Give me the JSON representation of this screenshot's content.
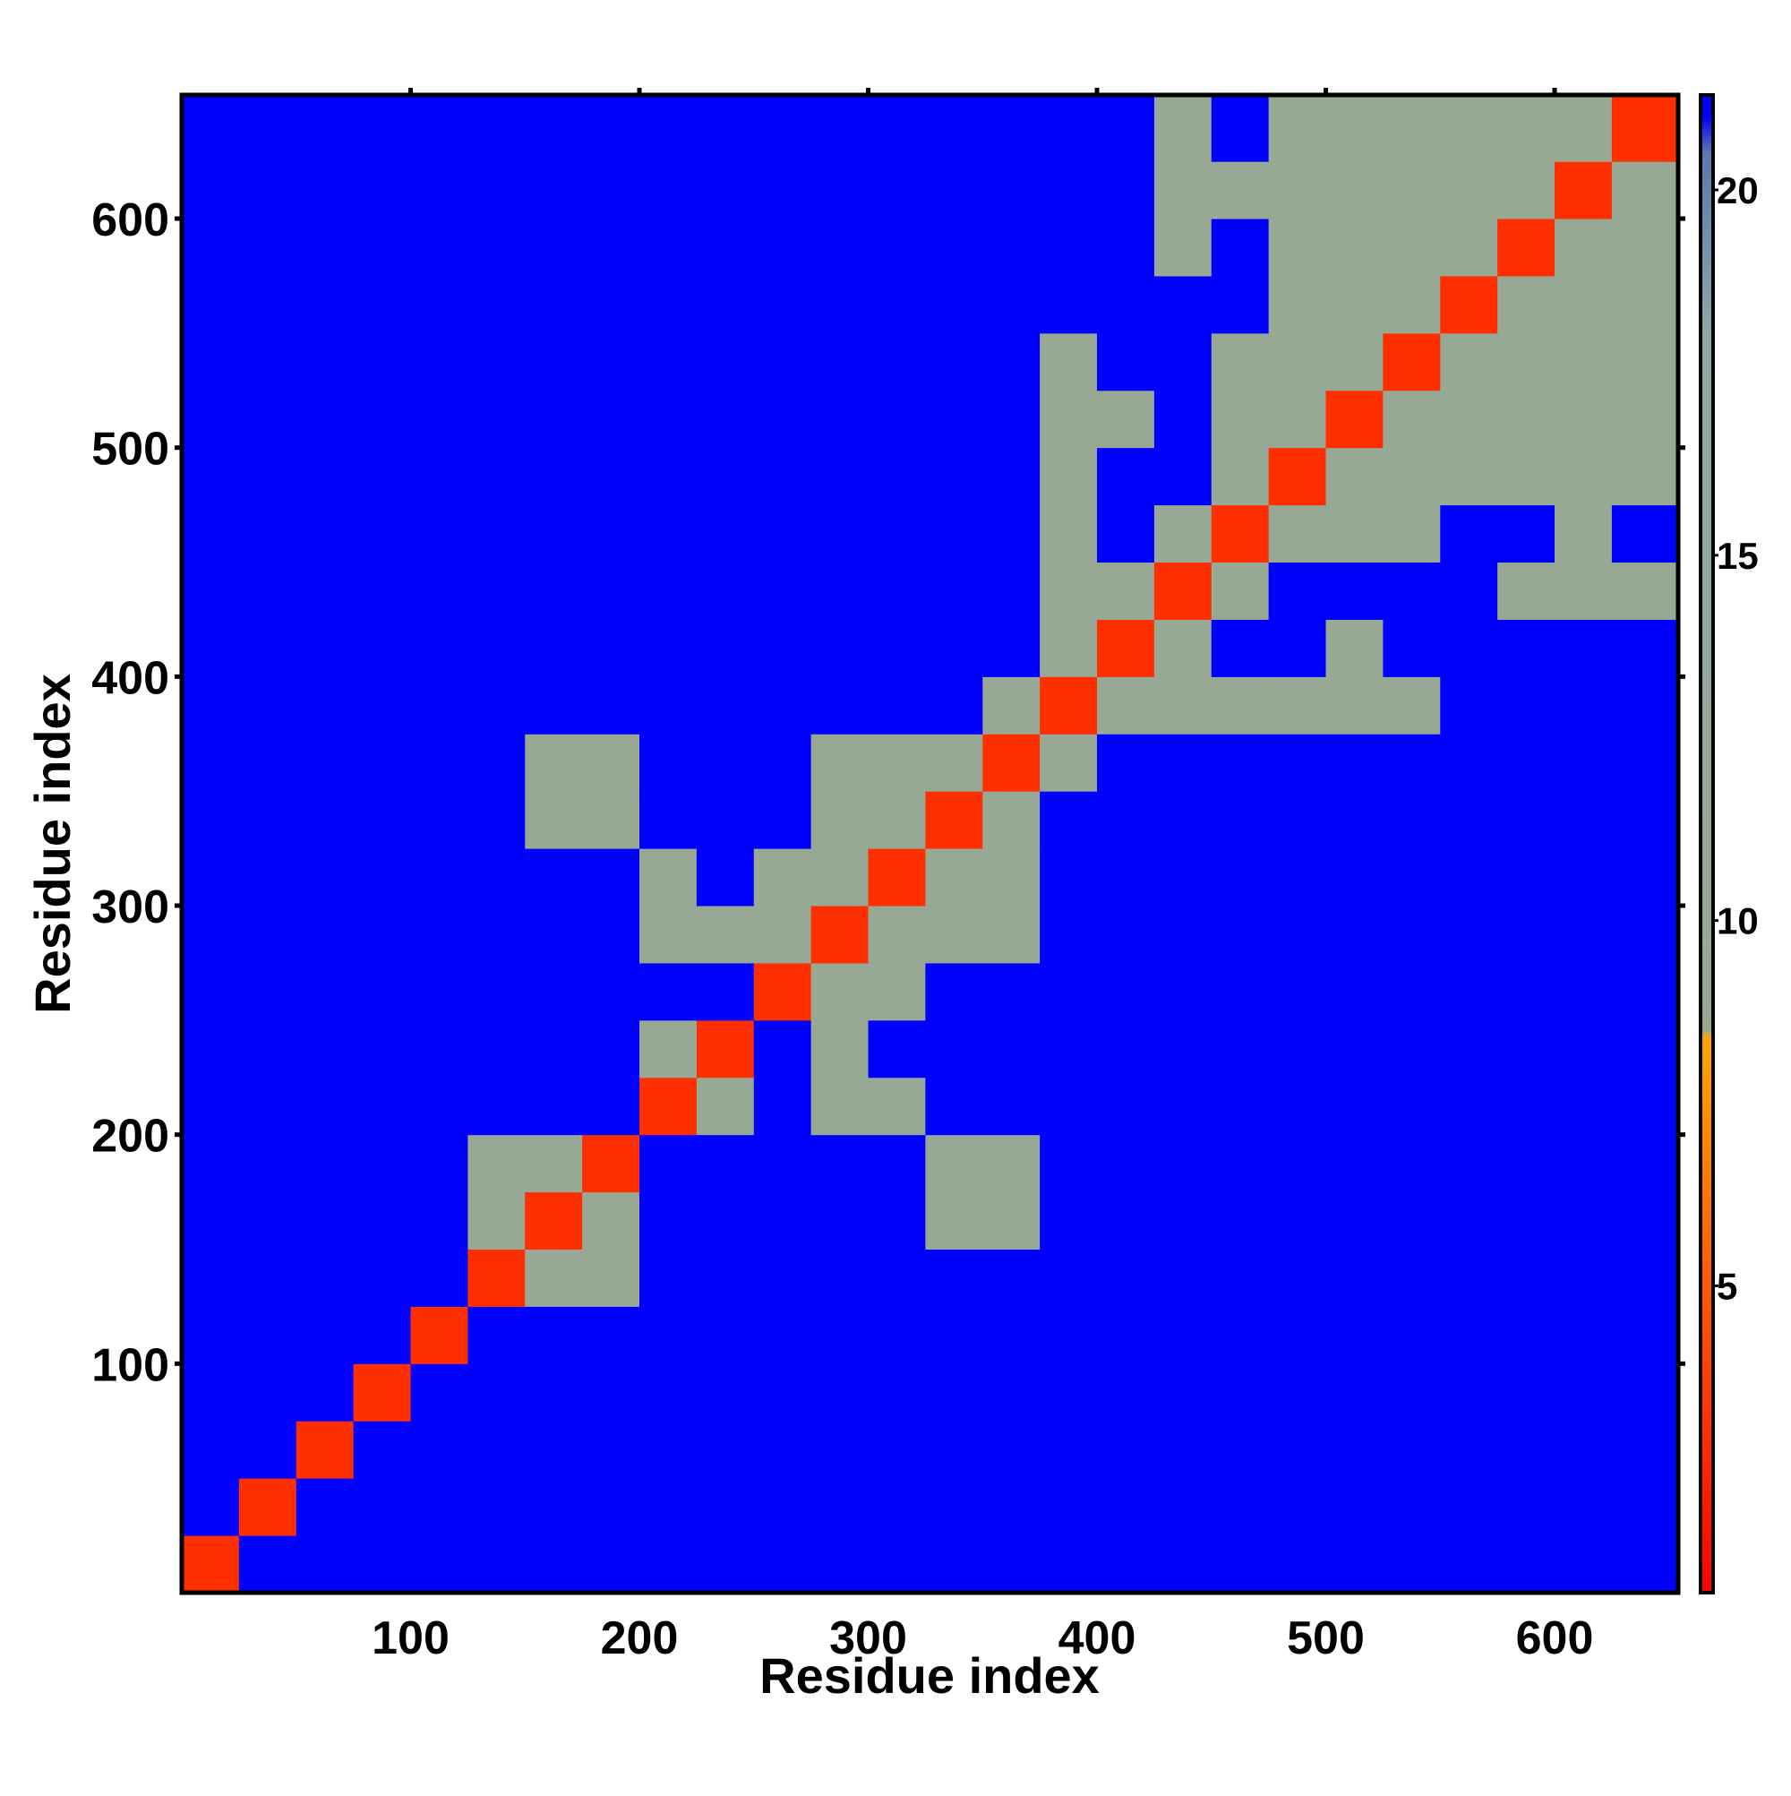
{
  "chart_data": {
    "type": "heatmap",
    "x_label": "Residue index",
    "y_label": "Residue index",
    "xlim": [
      0,
      654
    ],
    "ylim": [
      0,
      654
    ],
    "xticks": [
      100,
      200,
      300,
      400,
      500,
      600
    ],
    "yticks": [
      100,
      200,
      300,
      400,
      500,
      600
    ],
    "bins": [
      0,
      25,
      50,
      75,
      100,
      125,
      150,
      175,
      200,
      225,
      250,
      275,
      300,
      325,
      350,
      375,
      400,
      425,
      450,
      475,
      500,
      525,
      550,
      575,
      600,
      625,
      654
    ],
    "z": [
      [
        3,
        21,
        21,
        21,
        21,
        21,
        21,
        21,
        21,
        21,
        21,
        21,
        21,
        21,
        21,
        21,
        21,
        21,
        21,
        21,
        21,
        21,
        21,
        21,
        21,
        21
      ],
      [
        21,
        3,
        21,
        21,
        21,
        21,
        21,
        21,
        21,
        21,
        21,
        21,
        21,
        21,
        21,
        21,
        21,
        21,
        21,
        21,
        21,
        21,
        21,
        21,
        21,
        21
      ],
      [
        21,
        21,
        3,
        21,
        21,
        21,
        21,
        21,
        21,
        21,
        21,
        21,
        21,
        21,
        21,
        21,
        21,
        21,
        21,
        21,
        21,
        21,
        21,
        21,
        21,
        21
      ],
      [
        21,
        21,
        21,
        3,
        21,
        21,
        21,
        21,
        21,
        21,
        21,
        21,
        21,
        21,
        21,
        21,
        21,
        21,
        21,
        21,
        21,
        21,
        21,
        21,
        21,
        21
      ],
      [
        21,
        21,
        21,
        21,
        3,
        21,
        21,
        21,
        21,
        21,
        21,
        21,
        21,
        21,
        21,
        21,
        21,
        21,
        21,
        21,
        21,
        21,
        21,
        21,
        21,
        21
      ],
      [
        21,
        21,
        21,
        21,
        21,
        3,
        10,
        10,
        21,
        21,
        21,
        21,
        21,
        21,
        21,
        21,
        21,
        21,
        21,
        21,
        21,
        21,
        21,
        21,
        21,
        21
      ],
      [
        21,
        21,
        21,
        21,
        21,
        10,
        3,
        10,
        21,
        21,
        21,
        21,
        21,
        10,
        10,
        21,
        21,
        21,
        21,
        21,
        21,
        21,
        21,
        21,
        21,
        21
      ],
      [
        21,
        21,
        21,
        21,
        21,
        10,
        10,
        3,
        21,
        21,
        21,
        21,
        21,
        10,
        10,
        21,
        21,
        21,
        21,
        21,
        21,
        21,
        21,
        21,
        21,
        21
      ],
      [
        21,
        21,
        21,
        21,
        21,
        21,
        21,
        21,
        3,
        10,
        21,
        10,
        10,
        21,
        21,
        21,
        21,
        21,
        21,
        21,
        21,
        21,
        21,
        21,
        21,
        21
      ],
      [
        21,
        21,
        21,
        21,
        21,
        21,
        21,
        21,
        10,
        3,
        21,
        10,
        21,
        21,
        21,
        21,
        21,
        21,
        21,
        21,
        21,
        21,
        21,
        21,
        21,
        21
      ],
      [
        21,
        21,
        21,
        21,
        21,
        21,
        21,
        21,
        21,
        21,
        3,
        10,
        10,
        21,
        21,
        21,
        21,
        21,
        21,
        21,
        21,
        21,
        21,
        21,
        21,
        21
      ],
      [
        21,
        21,
        21,
        21,
        21,
        21,
        21,
        21,
        10,
        10,
        10,
        3,
        10,
        10,
        10,
        21,
        21,
        21,
        21,
        21,
        21,
        21,
        21,
        21,
        21,
        21
      ],
      [
        21,
        21,
        21,
        21,
        21,
        21,
        21,
        21,
        10,
        21,
        10,
        10,
        3,
        10,
        10,
        21,
        21,
        21,
        21,
        21,
        21,
        21,
        21,
        21,
        21,
        21
      ],
      [
        21,
        21,
        21,
        21,
        21,
        21,
        10,
        10,
        21,
        21,
        21,
        10,
        10,
        3,
        10,
        21,
        21,
        21,
        21,
        21,
        21,
        21,
        21,
        21,
        21,
        21
      ],
      [
        21,
        21,
        21,
        21,
        21,
        21,
        10,
        10,
        21,
        21,
        21,
        10,
        10,
        10,
        3,
        10,
        21,
        21,
        21,
        21,
        21,
        21,
        21,
        21,
        21,
        21
      ],
      [
        21,
        21,
        21,
        21,
        21,
        21,
        21,
        21,
        21,
        21,
        21,
        21,
        21,
        21,
        10,
        3,
        10,
        10,
        10,
        10,
        10,
        10,
        21,
        21,
        21,
        21
      ],
      [
        21,
        21,
        21,
        21,
        21,
        21,
        21,
        21,
        21,
        21,
        21,
        21,
        21,
        21,
        21,
        10,
        3,
        10,
        21,
        21,
        10,
        21,
        21,
        21,
        21,
        21
      ],
      [
        21,
        21,
        21,
        21,
        21,
        21,
        21,
        21,
        21,
        21,
        21,
        21,
        21,
        21,
        21,
        10,
        10,
        3,
        10,
        21,
        21,
        21,
        21,
        10,
        10,
        10
      ],
      [
        21,
        21,
        21,
        21,
        21,
        21,
        21,
        21,
        21,
        21,
        21,
        21,
        21,
        21,
        21,
        10,
        21,
        10,
        3,
        10,
        10,
        10,
        21,
        21,
        10,
        21
      ],
      [
        21,
        21,
        21,
        21,
        21,
        21,
        21,
        21,
        21,
        21,
        21,
        21,
        21,
        21,
        21,
        10,
        21,
        21,
        10,
        3,
        10,
        10,
        10,
        10,
        10,
        10
      ],
      [
        21,
        21,
        21,
        21,
        21,
        21,
        21,
        21,
        21,
        21,
        21,
        21,
        21,
        21,
        21,
        10,
        10,
        21,
        10,
        10,
        3,
        10,
        10,
        10,
        10,
        10
      ],
      [
        21,
        21,
        21,
        21,
        21,
        21,
        21,
        21,
        21,
        21,
        21,
        21,
        21,
        21,
        21,
        10,
        21,
        21,
        10,
        10,
        10,
        3,
        10,
        10,
        10,
        10
      ],
      [
        21,
        21,
        21,
        21,
        21,
        21,
        21,
        21,
        21,
        21,
        21,
        21,
        21,
        21,
        21,
        21,
        21,
        21,
        21,
        10,
        10,
        10,
        3,
        10,
        10,
        10
      ],
      [
        21,
        21,
        21,
        21,
        21,
        21,
        21,
        21,
        21,
        21,
        21,
        21,
        21,
        21,
        21,
        21,
        21,
        10,
        21,
        10,
        10,
        10,
        10,
        3,
        10,
        10
      ],
      [
        21,
        21,
        21,
        21,
        21,
        21,
        21,
        21,
        21,
        21,
        21,
        21,
        21,
        21,
        21,
        21,
        21,
        10,
        10,
        10,
        10,
        10,
        10,
        10,
        3,
        10
      ],
      [
        21,
        21,
        21,
        21,
        21,
        21,
        21,
        21,
        21,
        21,
        21,
        21,
        21,
        21,
        21,
        21,
        21,
        10,
        21,
        10,
        10,
        10,
        10,
        10,
        10,
        3
      ]
    ],
    "colorscale": [
      [
        0.8,
        "#ff0000"
      ],
      [
        5,
        "#ff5a00"
      ],
      [
        8.4,
        "#ffa500"
      ],
      [
        8.5,
        "#99a991"
      ],
      [
        18,
        "#8ea9a6"
      ],
      [
        20.5,
        "#5a7ab0"
      ],
      [
        21,
        "#0000ff"
      ]
    ],
    "clim": [
      0.8,
      21.3
    ],
    "cticks": [
      5,
      10,
      15,
      20
    ]
  }
}
